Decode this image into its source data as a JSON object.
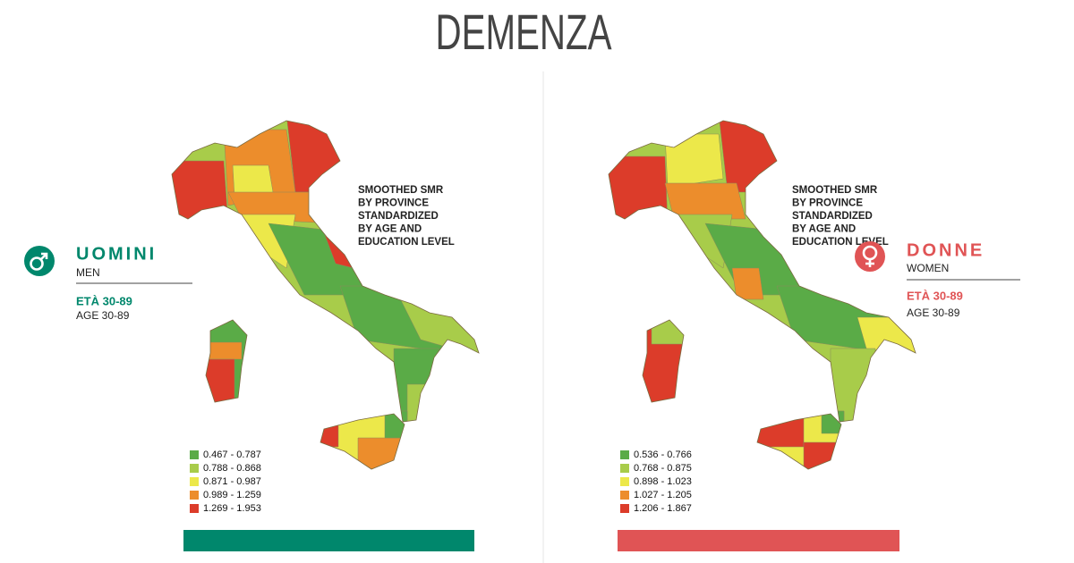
{
  "title": "DEMENZA",
  "panels": [
    {
      "label": "UOMINI",
      "sublabel": "MEN",
      "age_label": "ETÀ 30-89",
      "age_sublabel": "AGE 30-89",
      "accent": "#00876c",
      "note": [
        "SMOOTHED SMR",
        "BY PROVINCE",
        "STANDARDIZED",
        "BY AGE AND",
        "EDUCATION LEVEL"
      ],
      "legend": [
        {
          "label": "0.467 - 0.787",
          "color": "#5aab47"
        },
        {
          "label": "0.788 - 0.868",
          "color": "#a8cc4a"
        },
        {
          "label": "0.871 - 0.987",
          "color": "#ece84a"
        },
        {
          "label": "0.989 - 1.259",
          "color": "#ec8d2c"
        },
        {
          "label": "1.269 - 1.953",
          "color": "#dc3c2a"
        }
      ]
    },
    {
      "label": "DONNE",
      "sublabel": "WOMEN",
      "age_label": "ETÀ 30-89",
      "age_sublabel": "AGE 30-89",
      "accent": "#e05455",
      "note": [
        "SMOOTHED SMR",
        "BY PROVINCE",
        "STANDARDIZED",
        "BY AGE AND",
        "EDUCATION LEVEL"
      ],
      "legend": [
        {
          "label": "0.536 - 0.766",
          "color": "#5aab47"
        },
        {
          "label": "0.768 - 0.875",
          "color": "#a8cc4a"
        },
        {
          "label": "0.898 - 1.023",
          "color": "#ece84a"
        },
        {
          "label": "1.027 - 1.205",
          "color": "#ec8d2c"
        },
        {
          "label": "1.206 - 1.867",
          "color": "#dc3c2a"
        }
      ]
    }
  ]
}
